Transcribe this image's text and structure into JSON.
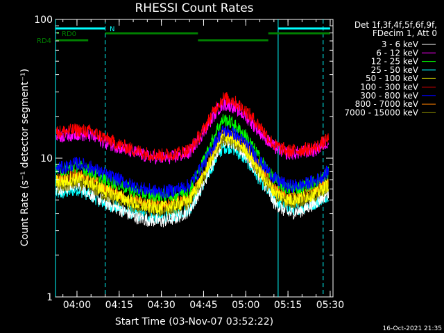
{
  "chart_data": {
    "type": "line",
    "title": "RHESSI Count Rates",
    "xlabel": "Start Time (03-Nov-07 03:52:22)",
    "ylabel": "Count Rate (s⁻¹ detector segment⁻¹)",
    "y_scale": "log",
    "ylim": [
      1,
      100
    ],
    "xlim": [
      "03:52:22",
      "05:31:00"
    ],
    "x_ticks": [
      "04:00",
      "04:15",
      "04:30",
      "04:45",
      "05:00",
      "05:15",
      "05:30"
    ],
    "y_ticks": [
      "1",
      "10",
      "100"
    ],
    "grid": false,
    "legend_position": "right",
    "legend_header": [
      "Det 1f,3f,4f,5f,6f,9f,",
      "FDecim 1, Att 0"
    ],
    "timestamp": "16-Oct-2021 21:35",
    "x": [
      "03:55",
      "04:00",
      "04:05",
      "04:10",
      "04:15",
      "04:20",
      "04:25",
      "04:30",
      "04:35",
      "04:40",
      "04:45",
      "04:50",
      "04:52",
      "04:55",
      "05:00",
      "05:05",
      "05:10",
      "05:15",
      "05:20",
      "05:25",
      "05:30"
    ],
    "series": [
      {
        "name": "3 - 6 keV",
        "color": "#ffffff",
        "values": [
          6.0,
          6.5,
          5.5,
          4.8,
          4.3,
          3.8,
          3.6,
          3.5,
          3.7,
          4.2,
          6.5,
          11.5,
          13.5,
          13.0,
          10.5,
          7.5,
          4.8,
          4.0,
          4.2,
          4.8,
          5.8
        ]
      },
      {
        "name": "6 - 12 keV",
        "color": "#ff00ff",
        "values": [
          14.5,
          15.0,
          14.5,
          13.0,
          12.0,
          11.0,
          10.3,
          10.0,
          10.2,
          11.0,
          15.5,
          22.5,
          24.5,
          24.0,
          20.0,
          15.5,
          12.0,
          10.8,
          11.0,
          11.5,
          13.5
        ]
      },
      {
        "name": "12 - 25 keV",
        "color": "#00ff00",
        "values": [
          8.2,
          8.8,
          8.0,
          7.0,
          6.5,
          5.8,
          5.5,
          5.4,
          5.5,
          6.0,
          9.5,
          16.5,
          19.0,
          18.0,
          14.5,
          10.0,
          7.0,
          6.0,
          6.2,
          6.8,
          8.0
        ]
      },
      {
        "name": "25 - 50 keV",
        "color": "#00ffff",
        "values": [
          5.6,
          6.0,
          5.4,
          4.7,
          4.4,
          4.0,
          3.8,
          3.7,
          3.9,
          4.3,
          6.5,
          10.5,
          12.0,
          12.0,
          9.8,
          7.0,
          5.0,
          4.3,
          4.4,
          4.8,
          5.6
        ]
      },
      {
        "name": "50 - 100 keV",
        "color": "#ffff00",
        "values": [
          6.8,
          7.2,
          6.6,
          5.8,
          5.3,
          4.8,
          4.5,
          4.4,
          4.6,
          5.0,
          7.5,
          12.5,
          14.5,
          14.0,
          11.5,
          8.0,
          5.8,
          5.0,
          5.2,
          5.6,
          6.6
        ]
      },
      {
        "name": "100 - 300 keV",
        "color": "#ff0000",
        "values": [
          15.5,
          16.0,
          15.5,
          14.0,
          12.5,
          11.5,
          10.8,
          10.5,
          10.8,
          11.5,
          16.0,
          24.5,
          27.0,
          26.5,
          22.0,
          17.0,
          12.5,
          11.2,
          11.5,
          12.0,
          14.0
        ]
      },
      {
        "name": "300 - 800 keV",
        "color": "#0000ff",
        "values": [
          8.5,
          9.2,
          8.6,
          7.6,
          7.0,
          6.3,
          5.9,
          5.7,
          5.9,
          6.4,
          9.0,
          14.0,
          15.8,
          15.5,
          12.8,
          9.5,
          7.2,
          6.3,
          6.4,
          6.9,
          8.2
        ]
      },
      {
        "name": "800 - 7000 keV",
        "color": "#ff8000",
        "values": [
          7.0,
          7.5,
          7.0,
          6.0,
          5.5,
          5.0,
          4.7,
          4.6,
          4.8,
          5.2,
          7.8,
          13.0,
          15.0,
          14.5,
          12.0,
          8.5,
          6.0,
          5.2,
          5.4,
          5.8,
          6.9
        ]
      },
      {
        "name": "7000 - 15000 keV",
        "color": "#808000",
        "values": [
          6.2,
          6.7,
          6.2,
          5.4,
          5.0,
          4.5,
          4.3,
          4.2,
          4.4,
          4.8,
          7.2,
          12.0,
          14.0,
          13.5,
          11.0,
          7.8,
          5.5,
          4.8,
          5.0,
          5.4,
          6.3
        ]
      }
    ],
    "flags": [
      {
        "name": "N",
        "color": "#00ffff",
        "label_shown": true,
        "segments": [
          [
            "03:52:22",
            "04:10:00"
          ],
          [
            "05:11:30",
            "05:30:00"
          ]
        ]
      },
      {
        "name": "RD0",
        "color": "#008000",
        "label_shown": true,
        "segments": [
          [
            "04:10:00",
            "04:43:00"
          ],
          [
            "05:08:00",
            "05:30:00"
          ]
        ]
      },
      {
        "name": "RD4",
        "color": "#008000",
        "label_shown": true,
        "segments": [
          [
            "03:52:22",
            "04:04:00"
          ],
          [
            "04:43:00",
            "05:08:00"
          ]
        ]
      }
    ],
    "vertical_markers": [
      {
        "time": "03:52:22",
        "style": "solid",
        "color": "#00ffff"
      },
      {
        "time": "04:10:00",
        "style": "dashed",
        "color": "#00ffff"
      },
      {
        "time": "05:11:30",
        "style": "solid",
        "color": "#00ffff"
      },
      {
        "time": "05:27:30",
        "style": "dashed",
        "color": "#00ffff"
      }
    ]
  }
}
